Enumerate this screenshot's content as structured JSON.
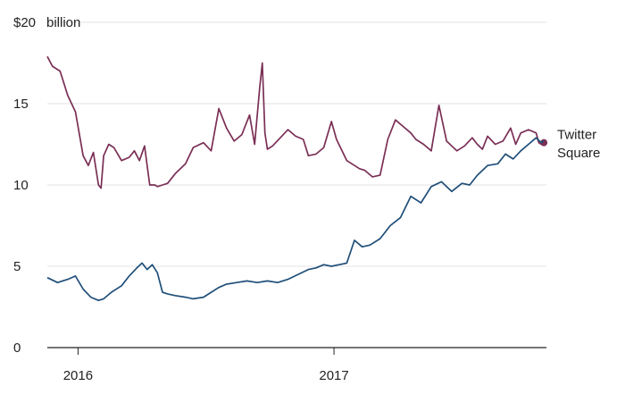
{
  "chart_data": {
    "type": "line",
    "title": "",
    "xlabel": "",
    "ylabel": "",
    "y_unit_label": "billion",
    "y_ticks": [
      0,
      5,
      10,
      15,
      20
    ],
    "y_tick_labels": [
      "0",
      "5",
      "10",
      "15",
      "$20"
    ],
    "ylim": [
      0,
      20
    ],
    "xlim": [
      2015.88,
      2017.83
    ],
    "x_ticks": [
      2016,
      2017
    ],
    "x_tick_labels": [
      "2016",
      "2017"
    ],
    "grid": true,
    "legend": "none",
    "series": [
      {
        "name": "Twitter",
        "color": "#7a2f55",
        "end_marker": true,
        "x": [
          2015.88,
          2015.9,
          2015.93,
          2015.96,
          2015.99,
          2016.02,
          2016.04,
          2016.06,
          2016.08,
          2016.09,
          2016.1,
          2016.12,
          2016.14,
          2016.17,
          2016.2,
          2016.22,
          2016.24,
          2016.26,
          2016.28,
          2016.3,
          2016.31,
          2016.33,
          2016.35,
          2016.38,
          2016.42,
          2016.45,
          2016.49,
          2016.52,
          2016.55,
          2016.58,
          2016.61,
          2016.64,
          2016.67,
          2016.69,
          2016.71,
          2016.72,
          2016.73,
          2016.74,
          2016.76,
          2016.79,
          2016.82,
          2016.85,
          2016.88,
          2016.9,
          2016.93,
          2016.96,
          2016.99,
          2017.01,
          2017.05,
          2017.08,
          2017.1,
          2017.12,
          2017.15,
          2017.18,
          2017.21,
          2017.24,
          2017.27,
          2017.3,
          2017.32,
          2017.35,
          2017.38,
          2017.41,
          2017.44,
          2017.48,
          2017.51,
          2017.54,
          2017.56,
          2017.58,
          2017.6,
          2017.63,
          2017.66,
          2017.69,
          2017.71,
          2017.73,
          2017.76,
          2017.79,
          2017.8,
          2017.81,
          2017.82
        ],
        "y": [
          17.9,
          17.3,
          17.0,
          15.5,
          14.5,
          11.8,
          11.2,
          12.0,
          10.0,
          9.8,
          11.8,
          12.5,
          12.3,
          11.5,
          11.7,
          12.1,
          11.5,
          12.4,
          10.0,
          10.0,
          9.9,
          10.0,
          10.1,
          10.7,
          11.3,
          12.3,
          12.6,
          12.1,
          14.7,
          13.5,
          12.7,
          13.1,
          14.3,
          12.5,
          16.0,
          17.5,
          13.2,
          12.2,
          12.4,
          12.9,
          13.4,
          13.0,
          12.8,
          11.8,
          11.9,
          12.3,
          13.9,
          12.8,
          11.5,
          11.2,
          11.0,
          10.9,
          10.5,
          10.6,
          12.8,
          14.0,
          13.6,
          13.2,
          12.8,
          12.5,
          12.1,
          14.9,
          12.7,
          12.1,
          12.4,
          12.9,
          12.5,
          12.2,
          13.0,
          12.5,
          12.7,
          13.5,
          12.5,
          13.2,
          13.4,
          13.2,
          12.6,
          12.5,
          12.6
        ]
      },
      {
        "name": "Square",
        "color": "#1f4e79",
        "end_marker": false,
        "x": [
          2015.88,
          2015.92,
          2015.96,
          2015.99,
          2016.02,
          2016.05,
          2016.08,
          2016.1,
          2016.13,
          2016.17,
          2016.2,
          2016.23,
          2016.25,
          2016.27,
          2016.29,
          2016.31,
          2016.33,
          2016.35,
          2016.38,
          2016.42,
          2016.45,
          2016.49,
          2016.52,
          2016.55,
          2016.58,
          2016.62,
          2016.66,
          2016.7,
          2016.74,
          2016.78,
          2016.82,
          2016.86,
          2016.9,
          2016.93,
          2016.96,
          2016.99,
          2017.02,
          2017.05,
          2017.08,
          2017.11,
          2017.14,
          2017.18,
          2017.22,
          2017.26,
          2017.3,
          2017.34,
          2017.38,
          2017.42,
          2017.46,
          2017.5,
          2017.53,
          2017.56,
          2017.6,
          2017.64,
          2017.67,
          2017.7,
          2017.73,
          2017.76,
          2017.79,
          2017.81,
          2017.82
        ],
        "y": [
          4.3,
          4.0,
          4.2,
          4.4,
          3.6,
          3.1,
          2.9,
          3.0,
          3.4,
          3.8,
          4.4,
          4.9,
          5.2,
          4.8,
          5.1,
          4.6,
          3.4,
          3.3,
          3.2,
          3.1,
          3.0,
          3.1,
          3.4,
          3.7,
          3.9,
          4.0,
          4.1,
          4.0,
          4.1,
          4.0,
          4.2,
          4.5,
          4.8,
          4.9,
          5.1,
          5.0,
          5.1,
          5.2,
          6.6,
          6.2,
          6.3,
          6.7,
          7.5,
          8.0,
          9.3,
          8.9,
          9.9,
          10.2,
          9.6,
          10.1,
          10.0,
          10.6,
          11.2,
          11.3,
          11.9,
          11.6,
          12.1,
          12.5,
          12.9,
          12.6,
          12.7
        ]
      }
    ]
  }
}
